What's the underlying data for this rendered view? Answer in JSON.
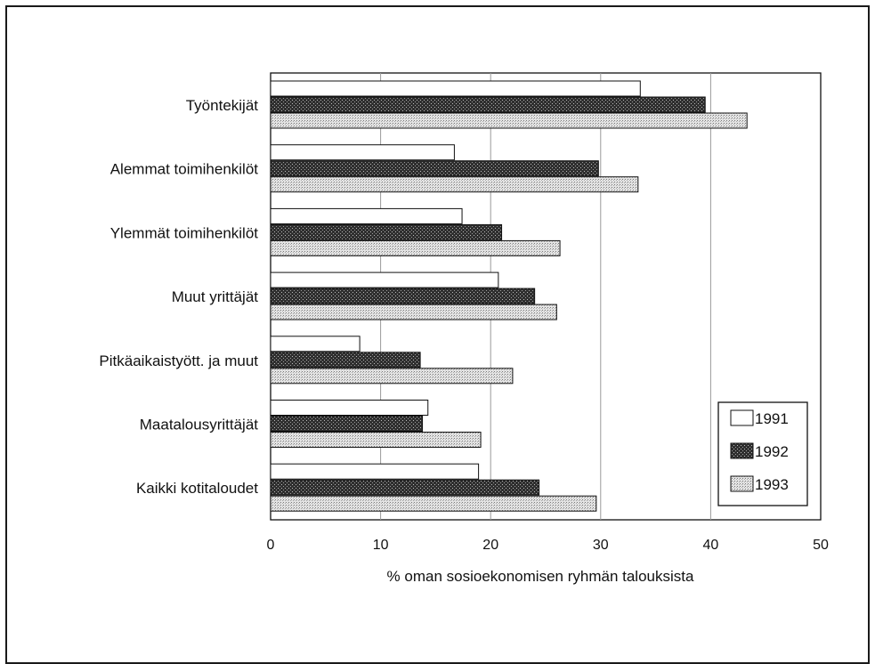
{
  "chart_data": {
    "type": "bar",
    "orientation": "horizontal",
    "title": "",
    "xlabel": "% oman sosioekonomisen ryhmän talouksista",
    "ylabel": "",
    "xlim": [
      0,
      50
    ],
    "xticks": [
      0,
      10,
      20,
      30,
      40,
      50
    ],
    "grid": true,
    "legend_position": "bottom-right",
    "categories": [
      "Työntekijät",
      "Alemmat toimihenkilöt",
      "Ylemmät toimihenkilöt",
      "Muut yrittäjät",
      "Pitkäaikaistyött. ja muut",
      "Maatalousyrittäjät",
      "Kaikki kotitaloudet"
    ],
    "series": [
      {
        "name": "1991",
        "fill": "white",
        "color": "#ffffff",
        "values": [
          33.6,
          16.7,
          17.4,
          20.7,
          8.1,
          14.3,
          18.9
        ]
      },
      {
        "name": "1992",
        "fill": "dark-crosshatch",
        "color": "#3a3a3a",
        "values": [
          39.5,
          29.8,
          21.0,
          24.0,
          13.6,
          13.8,
          24.4
        ]
      },
      {
        "name": "1993",
        "fill": "light-stipple",
        "color": "#c8c8c8",
        "values": [
          43.3,
          33.4,
          26.3,
          26.0,
          22.0,
          19.1,
          29.6
        ]
      }
    ]
  }
}
